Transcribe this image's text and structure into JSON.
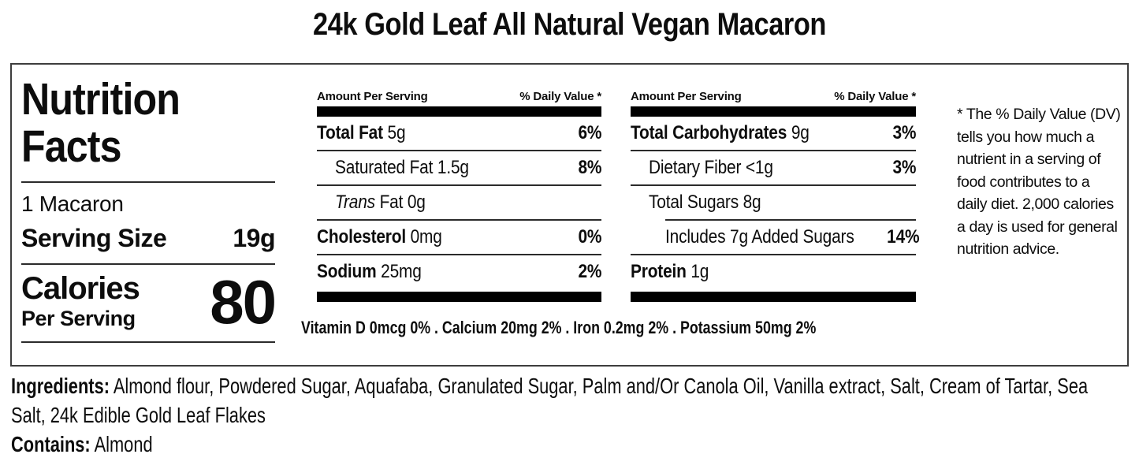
{
  "page_title": "24k Gold Leaf All Natural Vegan Macaron",
  "colors": {
    "text": "#0d0d0d",
    "thick_bar": "#000000",
    "box_border": "#3d3d3d",
    "background": "#ffffff"
  },
  "label": {
    "heading_line1": "Nutrition",
    "heading_line2": "Facts",
    "serving_description": "1 Macaron",
    "serving_size_label": "Serving Size",
    "serving_size_value": "19g",
    "calories_label": "Calories",
    "calories_sublabel": "Per Serving",
    "calories_value": "80",
    "column_header_left": "Amount Per Serving",
    "column_header_right": "% Daily Value *",
    "nutrients_left": [
      {
        "name": "Total Fat",
        "amount": "5g",
        "dv": "6%"
      },
      {
        "name": "Saturated Fat",
        "amount": "1.5g",
        "dv": "8%"
      },
      {
        "name_italic": "Trans",
        "name": "Fat",
        "amount": "0g",
        "dv": ""
      },
      {
        "name": "Cholesterol",
        "amount": "0mg",
        "dv": "0%"
      },
      {
        "name": "Sodium",
        "amount": "25mg",
        "dv": "2%"
      }
    ],
    "nutrients_right": [
      {
        "name": "Total Carbohydrates",
        "amount": "9g",
        "dv": "3%"
      },
      {
        "name": "Dietary Fiber",
        "amount": "<1g",
        "dv": "3%"
      },
      {
        "name": "Total Sugars",
        "amount": "8g",
        "dv": ""
      },
      {
        "name": "Includes 7g Added Sugars",
        "amount": "",
        "dv": "14%"
      },
      {
        "name": "Protein",
        "amount": "1g",
        "dv": ""
      }
    ],
    "micronutrients": "Vitamin D 0mcg 0% . Calcium 20mg 2% . Iron 0.2mg 2% . Potassium 50mg 2%",
    "footnote": "* The % Daily Value (DV) tells you how much a nutrient in a serving of food contributes to a daily diet. 2,000 calories a day is used for general nutrition advice."
  },
  "ingredients": {
    "label": "Ingredients:",
    "text": "Almond flour, Powdered Sugar, Aquafaba, Granulated Sugar, Palm and/Or Canola Oil, Vanilla extract, Salt, Cream of Tartar, Sea Salt, 24k Edible Gold Leaf Flakes"
  },
  "contains": {
    "label": "Contains:",
    "text": "Almond"
  }
}
